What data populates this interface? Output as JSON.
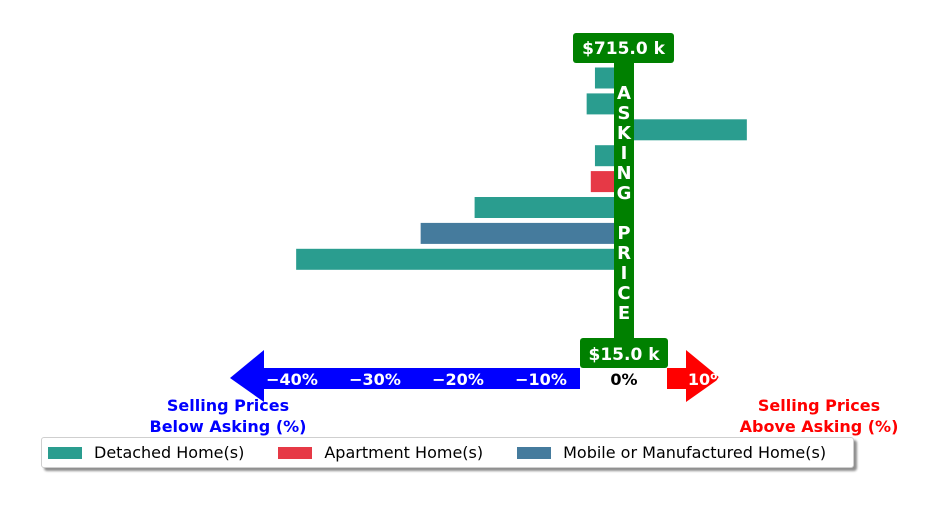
{
  "chart_data": {
    "type": "bar",
    "orientation": "horizontal",
    "colors": {
      "detached": "#2a9d8f",
      "apartment": "#e63946",
      "mobile": "#457b9d",
      "asking_price": "#008000",
      "below": "#0000ff",
      "above": "#ff0000"
    },
    "bars": [
      {
        "category": "Detached Home(s)",
        "value": -3.5
      },
      {
        "category": "Detached Home(s)",
        "value": -4.5
      },
      {
        "category": "Detached Home(s)",
        "value": 14.8
      },
      {
        "category": "Detached Home(s)",
        "value": -3.5
      },
      {
        "category": "Apartment Home(s)",
        "value": -4.0
      },
      {
        "category": "Detached Home(s)",
        "value": -18.0
      },
      {
        "category": "Mobile or Manufactured Home(s)",
        "value": -24.5
      },
      {
        "category": "Detached Home(s)",
        "value": -39.5
      }
    ],
    "xlim": [
      -48,
      12
    ],
    "x_ticks": [
      {
        "value": -40,
        "label": "−40%",
        "side": "below"
      },
      {
        "value": -30,
        "label": "−30%",
        "side": "below"
      },
      {
        "value": -20,
        "label": "−20%",
        "side": "below"
      },
      {
        "value": -10,
        "label": "−10%",
        "side": "below"
      },
      {
        "value": 0,
        "label": "0%",
        "side": "zero"
      },
      {
        "value": 10,
        "label": "10%",
        "side": "above"
      }
    ],
    "price_top": "$715.0 k",
    "price_bottom": "$15.0 k",
    "asking_price_letters": [
      "A",
      "S",
      "K",
      "I",
      "N",
      "G",
      "",
      "P",
      "R",
      "I",
      "C",
      "E"
    ],
    "below_label": [
      "Selling Prices",
      "Below Asking (%)"
    ],
    "above_label": [
      "Selling Prices",
      "Above Asking (%)"
    ],
    "legend": [
      {
        "label": "Detached Home(s)",
        "key": "detached"
      },
      {
        "label": "Apartment Home(s)",
        "key": "apartment"
      },
      {
        "label": "Mobile or Manufactured Home(s)",
        "key": "mobile"
      }
    ],
    "grid": false
  }
}
